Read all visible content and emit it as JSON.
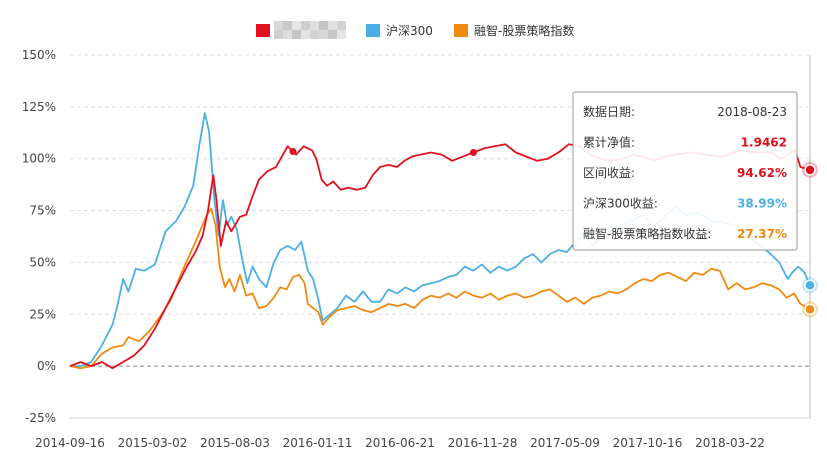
{
  "chart_data": {
    "type": "line",
    "ylim": [
      -25,
      150
    ],
    "y_ticks": [
      "-25%",
      "0%",
      "25%",
      "50%",
      "75%",
      "100%",
      "125%",
      "150%"
    ],
    "x_ticks": [
      "2014-09-16",
      "2015-03-02",
      "2015-08-03",
      "2016-01-11",
      "2016-06-21",
      "2016-11-28",
      "2017-05-09",
      "2017-10-16",
      "2018-03-22"
    ],
    "grid": true,
    "legend_position": "top-center",
    "series": [
      {
        "name": "",
        "color": "#e0101e",
        "values": [
          [
            0,
            0
          ],
          [
            10,
            2
          ],
          [
            20,
            0
          ],
          [
            30,
            2
          ],
          [
            40,
            -1
          ],
          [
            50,
            2
          ],
          [
            60,
            5
          ],
          [
            70,
            10
          ],
          [
            80,
            18
          ],
          [
            90,
            28
          ],
          [
            100,
            38
          ],
          [
            110,
            48
          ],
          [
            118,
            55
          ],
          [
            125,
            63
          ],
          [
            130,
            75
          ],
          [
            135,
            92
          ],
          [
            138,
            80
          ],
          [
            142,
            58
          ],
          [
            147,
            70
          ],
          [
            152,
            65
          ],
          [
            160,
            72
          ],
          [
            166,
            73
          ],
          [
            172,
            82
          ],
          [
            178,
            90
          ],
          [
            186,
            94
          ],
          [
            194,
            96
          ],
          [
            205,
            106
          ],
          [
            213,
            102
          ],
          [
            220,
            106
          ],
          [
            228,
            104
          ],
          [
            232,
            100
          ],
          [
            237,
            90
          ],
          [
            242,
            87
          ],
          [
            248,
            89
          ],
          [
            255,
            85
          ],
          [
            262,
            86
          ],
          [
            270,
            85
          ],
          [
            278,
            86
          ],
          [
            285,
            92
          ],
          [
            292,
            96
          ],
          [
            300,
            97
          ],
          [
            308,
            96
          ],
          [
            315,
            99
          ],
          [
            322,
            101
          ],
          [
            330,
            102
          ],
          [
            340,
            103
          ],
          [
            350,
            102
          ],
          [
            360,
            99
          ],
          [
            370,
            101
          ],
          [
            380,
            103
          ],
          [
            390,
            105
          ],
          [
            400,
            106
          ],
          [
            410,
            107
          ],
          [
            420,
            103
          ],
          [
            430,
            101
          ],
          [
            440,
            99
          ],
          [
            450,
            100
          ],
          [
            460,
            103
          ],
          [
            470,
            107
          ],
          [
            480,
            106
          ],
          [
            490,
            102
          ],
          [
            500,
            100
          ],
          [
            510,
            99
          ],
          [
            520,
            100
          ],
          [
            530,
            102
          ],
          [
            540,
            101
          ],
          [
            550,
            99
          ],
          [
            560,
            101
          ],
          [
            570,
            102
          ],
          [
            585,
            103
          ],
          [
            600,
            102
          ],
          [
            615,
            101
          ],
          [
            630,
            104
          ],
          [
            645,
            103
          ],
          [
            660,
            103
          ],
          [
            670,
            100
          ],
          [
            683,
            104
          ],
          [
            688,
            96
          ],
          [
            697,
            94.62
          ]
        ]
      },
      {
        "name": "沪深300",
        "color": "#4bafe6",
        "values": [
          [
            0,
            0
          ],
          [
            10,
            0
          ],
          [
            20,
            2
          ],
          [
            30,
            10
          ],
          [
            40,
            20
          ],
          [
            45,
            30
          ],
          [
            50,
            42
          ],
          [
            55,
            36
          ],
          [
            62,
            47
          ],
          [
            70,
            46
          ],
          [
            80,
            49
          ],
          [
            90,
            65
          ],
          [
            100,
            70
          ],
          [
            108,
            77
          ],
          [
            116,
            87
          ],
          [
            122,
            107
          ],
          [
            127,
            122
          ],
          [
            131,
            113
          ],
          [
            136,
            80
          ],
          [
            140,
            63
          ],
          [
            144,
            80
          ],
          [
            148,
            68
          ],
          [
            152,
            72
          ],
          [
            157,
            66
          ],
          [
            162,
            52
          ],
          [
            167,
            40
          ],
          [
            172,
            48
          ],
          [
            178,
            42
          ],
          [
            185,
            38
          ],
          [
            192,
            50
          ],
          [
            198,
            56
          ],
          [
            205,
            58
          ],
          [
            212,
            56
          ],
          [
            218,
            60
          ],
          [
            224,
            46
          ],
          [
            229,
            42
          ],
          [
            234,
            32
          ],
          [
            238,
            22
          ],
          [
            245,
            25
          ],
          [
            252,
            28
          ],
          [
            260,
            34
          ],
          [
            268,
            31
          ],
          [
            276,
            36
          ],
          [
            284,
            31
          ],
          [
            292,
            31
          ],
          [
            300,
            37
          ],
          [
            308,
            35
          ],
          [
            316,
            38
          ],
          [
            324,
            36
          ],
          [
            332,
            39
          ],
          [
            340,
            40
          ],
          [
            348,
            41
          ],
          [
            356,
            43
          ],
          [
            364,
            44
          ],
          [
            372,
            48
          ],
          [
            380,
            46
          ],
          [
            388,
            49
          ],
          [
            396,
            45
          ],
          [
            404,
            48
          ],
          [
            412,
            46
          ],
          [
            420,
            48
          ],
          [
            428,
            52
          ],
          [
            436,
            54
          ],
          [
            444,
            50
          ],
          [
            452,
            54
          ],
          [
            460,
            56
          ],
          [
            468,
            55
          ],
          [
            476,
            60
          ],
          [
            484,
            64
          ],
          [
            492,
            58
          ],
          [
            500,
            62
          ],
          [
            510,
            65
          ],
          [
            520,
            68
          ],
          [
            530,
            70
          ],
          [
            540,
            73
          ],
          [
            550,
            67
          ],
          [
            560,
            72
          ],
          [
            570,
            77
          ],
          [
            580,
            73
          ],
          [
            592,
            74
          ],
          [
            605,
            70
          ],
          [
            618,
            69
          ],
          [
            632,
            67
          ],
          [
            645,
            60
          ],
          [
            658,
            55
          ],
          [
            668,
            50
          ],
          [
            676,
            42
          ],
          [
            680,
            45
          ],
          [
            686,
            48
          ],
          [
            692,
            45
          ],
          [
            697,
            38.99
          ]
        ]
      },
      {
        "name": "融智-股票策略指数",
        "color": "#f18a12",
        "values": [
          [
            0,
            0
          ],
          [
            10,
            -1
          ],
          [
            20,
            0
          ],
          [
            30,
            6
          ],
          [
            40,
            9
          ],
          [
            50,
            10
          ],
          [
            55,
            14
          ],
          [
            65,
            12
          ],
          [
            75,
            17
          ],
          [
            85,
            24
          ],
          [
            95,
            32
          ],
          [
            105,
            45
          ],
          [
            113,
            54
          ],
          [
            120,
            62
          ],
          [
            128,
            72
          ],
          [
            133,
            76
          ],
          [
            137,
            68
          ],
          [
            141,
            48
          ],
          [
            146,
            38
          ],
          [
            150,
            42
          ],
          [
            155,
            36
          ],
          [
            160,
            44
          ],
          [
            166,
            34
          ],
          [
            172,
            35
          ],
          [
            178,
            28
          ],
          [
            185,
            29
          ],
          [
            192,
            33
          ],
          [
            198,
            38
          ],
          [
            204,
            37
          ],
          [
            210,
            43
          ],
          [
            216,
            44
          ],
          [
            221,
            40
          ],
          [
            224,
            30
          ],
          [
            229,
            28
          ],
          [
            234,
            26
          ],
          [
            238,
            20
          ],
          [
            245,
            24
          ],
          [
            252,
            27
          ],
          [
            260,
            28
          ],
          [
            268,
            29
          ],
          [
            276,
            27
          ],
          [
            284,
            26
          ],
          [
            292,
            28
          ],
          [
            300,
            30
          ],
          [
            308,
            29
          ],
          [
            316,
            30
          ],
          [
            324,
            28
          ],
          [
            332,
            32
          ],
          [
            340,
            34
          ],
          [
            348,
            33
          ],
          [
            356,
            35
          ],
          [
            364,
            33
          ],
          [
            372,
            36
          ],
          [
            380,
            34
          ],
          [
            388,
            33
          ],
          [
            396,
            35
          ],
          [
            404,
            32
          ],
          [
            412,
            34
          ],
          [
            420,
            35
          ],
          [
            428,
            33
          ],
          [
            436,
            34
          ],
          [
            444,
            36
          ],
          [
            452,
            37
          ],
          [
            460,
            34
          ],
          [
            468,
            31
          ],
          [
            476,
            33
          ],
          [
            484,
            30
          ],
          [
            492,
            33
          ],
          [
            500,
            34
          ],
          [
            508,
            36
          ],
          [
            516,
            35
          ],
          [
            524,
            37
          ],
          [
            532,
            40
          ],
          [
            540,
            42
          ],
          [
            548,
            41
          ],
          [
            556,
            44
          ],
          [
            564,
            45
          ],
          [
            572,
            43
          ],
          [
            580,
            41
          ],
          [
            588,
            45
          ],
          [
            596,
            44
          ],
          [
            604,
            47
          ],
          [
            612,
            46
          ],
          [
            620,
            37
          ],
          [
            628,
            40
          ],
          [
            636,
            37
          ],
          [
            644,
            38
          ],
          [
            652,
            40
          ],
          [
            660,
            39
          ],
          [
            668,
            37
          ],
          [
            675,
            33
          ],
          [
            682,
            35
          ],
          [
            688,
            30
          ],
          [
            697,
            27.37
          ]
        ]
      }
    ],
    "markers": [
      {
        "series": 0,
        "x": 210
      },
      {
        "series": 0,
        "x": 380
      }
    ]
  },
  "tooltip": {
    "rows": [
      {
        "label": "数据日期:",
        "value": "2018-08-23",
        "color": "#333333"
      },
      {
        "label": "累计净值:",
        "value": "1.9462",
        "color": "#e0101e"
      },
      {
        "label": "区间收益:",
        "value": "94.62%",
        "color": "#e0101e"
      },
      {
        "label": "沪深300收益:",
        "value": "38.99%",
        "color": "#4bafe6"
      },
      {
        "label": "融智-股票策略指数收益:",
        "value": "27.37%",
        "color": "#f18a12"
      }
    ]
  }
}
